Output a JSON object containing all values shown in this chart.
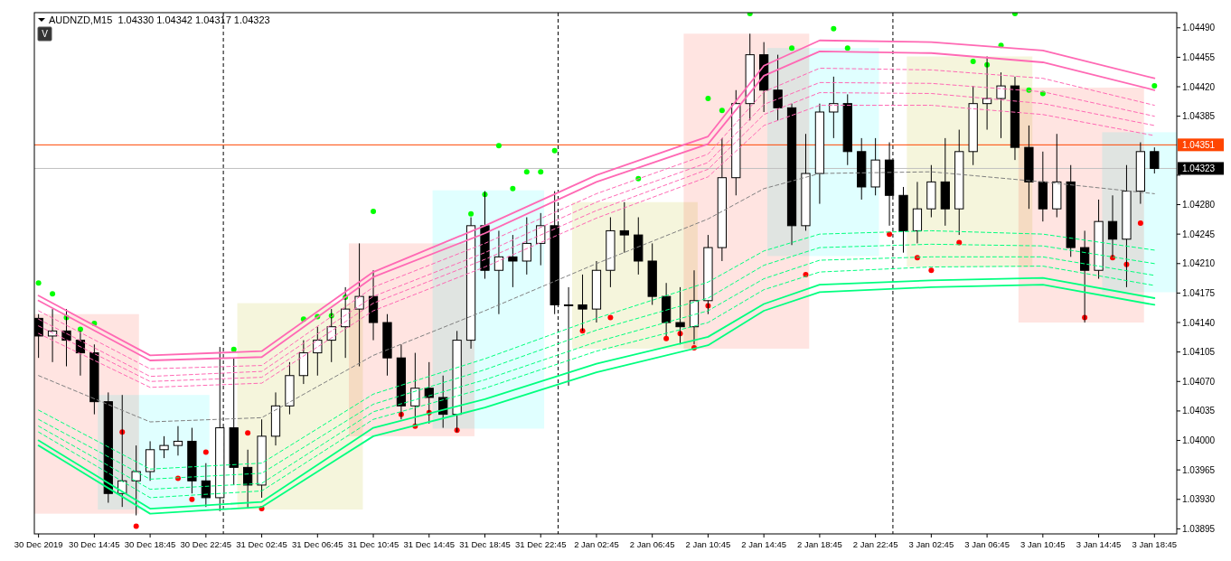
{
  "chart_data": {
    "type": "candlestick",
    "title": "AUDNZD,M15  1.04330 1.04342 1.04317 1.04323",
    "annotations": [
      "V"
    ],
    "ylim": [
      1.03889,
      1.04508
    ],
    "yticks": [
      {
        "value": 1.0449,
        "label": "1.04490"
      },
      {
        "value": 1.04455,
        "label": "1.04455"
      },
      {
        "value": 1.0442,
        "label": "1.04420"
      },
      {
        "value": 1.04385,
        "label": "1.04385"
      },
      {
        "value": 1.04315,
        "label": null
      },
      {
        "value": 1.0428,
        "label": "1.04280"
      },
      {
        "value": 1.04245,
        "label": "1.04245"
      },
      {
        "value": 1.0421,
        "label": "1.04210"
      },
      {
        "value": 1.04175,
        "label": "1.04175"
      },
      {
        "value": 1.0414,
        "label": "1.04140"
      },
      {
        "value": 1.04105,
        "label": "1.04105"
      },
      {
        "value": 1.0407,
        "label": "1.04070"
      },
      {
        "value": 1.04035,
        "label": "1.04035"
      },
      {
        "value": 1.04,
        "label": "1.04000"
      },
      {
        "value": 1.03965,
        "label": "1.03965"
      },
      {
        "value": 1.0393,
        "label": "1.03930"
      },
      {
        "value": 1.03895,
        "label": "1.03895"
      }
    ],
    "ref_lines": [
      {
        "axis": "y",
        "value": 1.04351,
        "label": "1.04351",
        "color": "#ff4500",
        "line_style": "solid"
      },
      {
        "axis": "y",
        "value": 1.04323,
        "label": "1.04323",
        "color": "#c0c0c0",
        "line_style": "solid"
      }
    ],
    "categories": [
      "30 Dec 2019",
      null,
      null,
      null,
      "30 Dec 14:45",
      null,
      null,
      null,
      "30 Dec 18:45",
      null,
      null,
      null,
      "30 Dec 22:45",
      null,
      null,
      null,
      "31 Dec 02:45",
      null,
      null,
      null,
      "31 Dec 06:45",
      null,
      null,
      null,
      "31 Dec 10:45",
      null,
      null,
      null,
      "31 Dec 14:45",
      null,
      null,
      null,
      "31 Dec 18:45",
      null,
      null,
      null,
      "31 Dec 22:45",
      null,
      null,
      null,
      "2 Jan 02:45",
      null,
      null,
      null,
      "2 Jan 06:45",
      null,
      null,
      null,
      "2 Jan 10:45",
      null,
      null,
      null,
      "2 Jan 14:45",
      null,
      null,
      null,
      "2 Jan 18:45",
      null,
      null,
      null,
      "2 Jan 22:45",
      null,
      null,
      null,
      "3 Jan 02:45",
      null,
      null,
      null,
      "3 Jan 06:45",
      null,
      null,
      null,
      "3 Jan 10:45",
      null,
      null,
      null,
      "3 Jan 14:45",
      null,
      null,
      null,
      "3 Jan 18:45"
    ],
    "ohlc": [
      [
        1.04145,
        1.0415,
        1.04098,
        1.04124
      ],
      [
        1.04124,
        1.04156,
        1.04093,
        1.0413
      ],
      [
        1.0413,
        1.04156,
        1.04088,
        1.04119
      ],
      [
        1.04119,
        1.0413,
        1.04077,
        1.04104
      ],
      [
        1.04104,
        1.04114,
        1.04031,
        1.04046
      ],
      [
        1.04046,
        1.04057,
        1.03926,
        1.03937
      ],
      [
        1.03937,
        1.04054,
        1.03921,
        1.03952
      ],
      [
        1.03952,
        1.03994,
        1.03911,
        1.03963
      ],
      [
        1.03963,
        1.03999,
        1.03952,
        1.03989
      ],
      [
        1.03989,
        1.04005,
        1.03979,
        1.03994
      ],
      [
        1.03994,
        1.04017,
        1.03982,
        1.03999
      ],
      [
        1.03999,
        1.04015,
        1.03937,
        1.03952
      ],
      [
        1.03952,
        1.03973,
        1.03921,
        1.03932
      ],
      [
        1.03932,
        1.04111,
        1.03916,
        1.04015
      ],
      [
        1.04015,
        1.04098,
        1.03947,
        1.03968
      ],
      [
        1.03968,
        1.03989,
        1.03919,
        1.03947
      ],
      [
        1.03947,
        1.04025,
        1.03932,
        1.04005
      ],
      [
        1.04005,
        1.04057,
        1.03994,
        1.04041
      ],
      [
        1.04041,
        1.04093,
        1.04031,
        1.04077
      ],
      [
        1.04077,
        1.04119,
        1.04067,
        1.04104
      ],
      [
        1.04104,
        1.04135,
        1.04077,
        1.04119
      ],
      [
        1.04119,
        1.04156,
        1.04093,
        1.04135
      ],
      [
        1.04135,
        1.04182,
        1.04098,
        1.04156
      ],
      [
        1.04156,
        1.04234,
        1.04088,
        1.04171
      ],
      [
        1.04171,
        1.04202,
        1.04119,
        1.0414
      ],
      [
        1.0414,
        1.0415,
        1.04077,
        1.04098
      ],
      [
        1.04098,
        1.04114,
        1.04025,
        1.04041
      ],
      [
        1.04041,
        1.04104,
        1.04017,
        1.04062
      ],
      [
        1.04062,
        1.04093,
        1.0402,
        1.04051
      ],
      [
        1.04051,
        1.04077,
        1.04015,
        1.04031
      ],
      [
        1.04031,
        1.0413,
        1.0401,
        1.04119
      ],
      [
        1.04119,
        1.04265,
        1.04109,
        1.04255
      ],
      [
        1.04255,
        1.04296,
        1.04192,
        1.04202
      ],
      [
        1.04202,
        1.04249,
        1.0415,
        1.04218
      ],
      [
        1.04218,
        1.04244,
        1.04182,
        1.04213
      ],
      [
        1.04213,
        1.04265,
        1.04197,
        1.04234
      ],
      [
        1.04234,
        1.0427,
        1.04208,
        1.04255
      ],
      [
        1.04255,
        1.04296,
        1.0415,
        1.04161
      ],
      [
        1.04161,
        1.04182,
        1.04065,
        1.04161
      ],
      [
        1.04161,
        1.04197,
        1.0413,
        1.04156
      ],
      [
        1.04156,
        1.04213,
        1.0414,
        1.04202
      ],
      [
        1.04202,
        1.04265,
        1.04182,
        1.04249
      ],
      [
        1.04249,
        1.04283,
        1.04223,
        1.04244
      ],
      [
        1.04244,
        1.04265,
        1.04197,
        1.04213
      ],
      [
        1.04213,
        1.04234,
        1.04161,
        1.04171
      ],
      [
        1.04171,
        1.04187,
        1.04124,
        1.0414
      ],
      [
        1.0414,
        1.04182,
        1.04114,
        1.04135
      ],
      [
        1.04135,
        1.04202,
        1.04114,
        1.04166
      ],
      [
        1.04166,
        1.04244,
        1.0415,
        1.04229
      ],
      [
        1.04229,
        1.04359,
        1.04213,
        1.04312
      ],
      [
        1.04312,
        1.04416,
        1.04291,
        1.044
      ],
      [
        1.044,
        1.04483,
        1.0438,
        1.04458
      ],
      [
        1.04458,
        1.04473,
        1.0439,
        1.04416
      ],
      [
        1.04416,
        1.04458,
        1.0438,
        1.04395
      ],
      [
        1.04395,
        1.044,
        1.04232,
        1.04255
      ],
      [
        1.04255,
        1.04364,
        1.04249,
        1.04317
      ],
      [
        1.04317,
        1.044,
        1.04281,
        1.0439
      ],
      [
        1.0439,
        1.04432,
        1.04359,
        1.044
      ],
      [
        1.044,
        1.04411,
        1.04327,
        1.04343
      ],
      [
        1.04343,
        1.04359,
        1.04286,
        1.04301
      ],
      [
        1.04301,
        1.04359,
        1.04291,
        1.04333
      ],
      [
        1.04333,
        1.04354,
        1.04255,
        1.04291
      ],
      [
        1.04291,
        1.04301,
        1.04223,
        1.04249
      ],
      [
        1.04249,
        1.04307,
        1.04234,
        1.04275
      ],
      [
        1.04275,
        1.04327,
        1.04265,
        1.04307
      ],
      [
        1.04307,
        1.04359,
        1.04255,
        1.04275
      ],
      [
        1.04275,
        1.04369,
        1.04244,
        1.04343
      ],
      [
        1.04343,
        1.04421,
        1.04327,
        1.044
      ],
      [
        1.044,
        1.04456,
        1.04369,
        1.04406
      ],
      [
        1.04406,
        1.04437,
        1.04359,
        1.04421
      ],
      [
        1.04421,
        1.04432,
        1.04333,
        1.04348
      ],
      [
        1.04348,
        1.04374,
        1.04275,
        1.04307
      ],
      [
        1.04307,
        1.04343,
        1.0426,
        1.04275
      ],
      [
        1.04275,
        1.04364,
        1.04265,
        1.04307
      ],
      [
        1.04307,
        1.04327,
        1.04218,
        1.04229
      ],
      [
        1.04229,
        1.04249,
        1.0414,
        1.04202
      ],
      [
        1.04202,
        1.04286,
        1.04192,
        1.0426
      ],
      [
        1.0426,
        1.04291,
        1.04218,
        1.04239
      ],
      [
        1.04239,
        1.04327,
        1.04182,
        1.04296
      ],
      [
        1.04296,
        1.04354,
        1.04281,
        1.04343
      ],
      [
        1.04343,
        1.04348,
        1.04317,
        1.04323
      ]
    ],
    "series": [
      {
        "type": "line",
        "color": "#ff69b4",
        "line_style": "solid",
        "x": [
          "30 Dec 2019",
          "30 Dec 18:45",
          "31 Dec 02:45",
          "31 Dec 10:45",
          "31 Dec 18:45",
          "2 Jan 02:45",
          "2 Jan 10:45",
          "2 Jan 14:45",
          "2 Jan 18:45",
          "3 Jan 02:45",
          "3 Jan 10:45",
          "3 Jan 18:45"
        ],
        "values": [
          1.04172,
          1.04101,
          1.04106,
          1.042,
          1.04255,
          1.04315,
          1.04361,
          1.04445,
          1.04475,
          1.04473,
          1.04463,
          1.0443
        ]
      },
      {
        "type": "line",
        "color": "#ff69b4",
        "line_style": "solid",
        "x": [
          "30 Dec 2019",
          "30 Dec 18:45",
          "31 Dec 02:45",
          "31 Dec 10:45",
          "31 Dec 18:45",
          "2 Jan 02:45",
          "2 Jan 10:45",
          "2 Jan 14:45",
          "2 Jan 18:45",
          "3 Jan 02:45",
          "3 Jan 10:45",
          "3 Jan 18:45"
        ],
        "values": [
          1.04166,
          1.04095,
          1.04099,
          1.04194,
          1.04246,
          1.04307,
          1.04352,
          1.04433,
          1.04462,
          1.0446,
          1.04449,
          1.04416
        ]
      },
      {
        "type": "line",
        "color": "#ff69b4",
        "line_style": "dashed",
        "x": [
          "30 Dec 2019",
          "30 Dec 18:45",
          "31 Dec 02:45",
          "31 Dec 10:45",
          "31 Dec 18:45",
          "2 Jan 02:45",
          "2 Jan 10:45",
          "2 Jan 14:45",
          "2 Jan 18:45",
          "3 Jan 02:45",
          "3 Jan 10:45",
          "3 Jan 18:45"
        ],
        "values": [
          1.04154,
          1.04085,
          1.04089,
          1.04182,
          1.04234,
          1.04293,
          1.0434,
          1.04414,
          1.04442,
          1.0444,
          1.0443,
          1.04398
        ]
      },
      {
        "type": "line",
        "color": "#ff69b4",
        "line_style": "dashed",
        "x": [
          "30 Dec 2019",
          "30 Dec 18:45",
          "31 Dec 02:45",
          "31 Dec 10:45",
          "31 Dec 18:45",
          "2 Jan 02:45",
          "2 Jan 10:45",
          "2 Jan 14:45",
          "2 Jan 18:45",
          "3 Jan 02:45",
          "3 Jan 10:45",
          "3 Jan 18:45"
        ],
        "values": [
          1.04144,
          1.04076,
          1.04082,
          1.04171,
          1.04223,
          1.04283,
          1.0433,
          1.04399,
          1.04425,
          1.04424,
          1.04414,
          1.04385
        ]
      },
      {
        "type": "line",
        "color": "#ff69b4",
        "line_style": "dashed",
        "x": [
          "30 Dec 2019",
          "30 Dec 18:45",
          "31 Dec 02:45",
          "31 Dec 10:45",
          "31 Dec 18:45",
          "2 Jan 02:45",
          "2 Jan 10:45",
          "2 Jan 14:45",
          "2 Jan 18:45",
          "3 Jan 02:45",
          "3 Jan 10:45",
          "3 Jan 18:45"
        ],
        "values": [
          1.04136,
          1.0407,
          1.04075,
          1.04163,
          1.04215,
          1.04273,
          1.04322,
          1.04387,
          1.04413,
          1.04412,
          1.044,
          1.04374
        ]
      },
      {
        "type": "line",
        "color": "#ff69b4",
        "line_style": "dashed",
        "x": [
          "30 Dec 2019",
          "30 Dec 18:45",
          "31 Dec 02:45",
          "31 Dec 10:45",
          "31 Dec 18:45",
          "2 Jan 02:45",
          "2 Jan 10:45",
          "2 Jan 14:45",
          "2 Jan 18:45",
          "3 Jan 02:45",
          "3 Jan 10:45",
          "3 Jan 18:45"
        ],
        "values": [
          1.04127,
          1.04063,
          1.04068,
          1.04154,
          1.04206,
          1.04264,
          1.04313,
          1.04374,
          1.04398,
          1.04398,
          1.04387,
          1.04362
        ]
      },
      {
        "type": "line",
        "color": "#808080",
        "line_style": "dashed",
        "x": [
          "30 Dec 2019",
          "30 Dec 18:45",
          "31 Dec 02:45",
          "31 Dec 10:45",
          "31 Dec 18:45",
          "2 Jan 02:45",
          "2 Jan 10:45",
          "2 Jan 14:45",
          "2 Jan 18:45",
          "3 Jan 02:45",
          "3 Jan 10:45",
          "3 Jan 18:45"
        ],
        "values": [
          1.04077,
          1.04022,
          1.04027,
          1.04101,
          1.04154,
          1.0421,
          1.04263,
          1.04299,
          1.04317,
          1.04319,
          1.04307,
          1.04293
        ]
      },
      {
        "type": "line",
        "color": "#00ff7f",
        "line_style": "dashed",
        "x": [
          "30 Dec 2019",
          "30 Dec 18:45",
          "31 Dec 02:45",
          "31 Dec 10:45",
          "31 Dec 18:45",
          "2 Jan 02:45",
          "2 Jan 10:45",
          "2 Jan 14:45",
          "2 Jan 18:45",
          "3 Jan 02:45",
          "3 Jan 10:45",
          "3 Jan 18:45"
        ],
        "values": [
          1.04036,
          1.03966,
          1.03973,
          1.04055,
          1.04097,
          1.04145,
          1.04188,
          1.04225,
          1.04245,
          1.04249,
          1.04245,
          1.04226
        ]
      },
      {
        "type": "line",
        "color": "#00ff7f",
        "line_style": "dashed",
        "x": [
          "30 Dec 2019",
          "30 Dec 18:45",
          "31 Dec 02:45",
          "31 Dec 10:45",
          "31 Dec 18:45",
          "2 Jan 02:45",
          "2 Jan 10:45",
          "2 Jan 14:45",
          "2 Jan 18:45",
          "3 Jan 02:45",
          "3 Jan 10:45",
          "3 Jan 18:45"
        ],
        "values": [
          1.04025,
          1.03954,
          1.03961,
          1.04043,
          1.04084,
          1.04131,
          1.04169,
          1.04208,
          1.04229,
          1.04233,
          1.04231,
          1.0421
        ]
      },
      {
        "type": "line",
        "color": "#00ff7f",
        "line_style": "dashed",
        "x": [
          "30 Dec 2019",
          "30 Dec 18:45",
          "31 Dec 02:45",
          "31 Dec 10:45",
          "31 Dec 18:45",
          "2 Jan 02:45",
          "2 Jan 10:45",
          "2 Jan 14:45",
          "2 Jan 18:45",
          "3 Jan 02:45",
          "3 Jan 10:45",
          "3 Jan 18:45"
        ],
        "values": [
          1.04017,
          1.03942,
          1.03949,
          1.04034,
          1.04072,
          1.04117,
          1.04154,
          1.04192,
          1.04214,
          1.04218,
          1.04218,
          1.04196
        ]
      },
      {
        "type": "line",
        "color": "#00ff7f",
        "line_style": "dashed",
        "x": [
          "30 Dec 2019",
          "30 Dec 18:45",
          "31 Dec 02:45",
          "31 Dec 10:45",
          "31 Dec 18:45",
          "2 Jan 02:45",
          "2 Jan 10:45",
          "2 Jan 14:45",
          "2 Jan 18:45",
          "3 Jan 02:45",
          "3 Jan 10:45",
          "3 Jan 18:45"
        ],
        "values": [
          1.0401,
          1.03932,
          1.0394,
          1.04025,
          1.04062,
          1.04106,
          1.0414,
          1.04179,
          1.042,
          1.04206,
          1.04207,
          1.04184
        ]
      },
      {
        "type": "line",
        "color": "#00ff7f",
        "line_style": "solid",
        "x": [
          "30 Dec 2019",
          "30 Dec 18:45",
          "31 Dec 02:45",
          "31 Dec 10:45",
          "31 Dec 18:45",
          "2 Jan 02:45",
          "2 Jan 10:45",
          "2 Jan 14:45",
          "2 Jan 18:45",
          "3 Jan 02:45",
          "3 Jan 10:45",
          "3 Jan 18:45"
        ],
        "values": [
          1.04,
          1.03919,
          1.03927,
          1.04015,
          1.04049,
          1.04091,
          1.04123,
          1.04162,
          1.04185,
          1.0419,
          1.04193,
          1.04169
        ]
      },
      {
        "type": "line",
        "color": "#00ff7f",
        "line_style": "solid",
        "x": [
          "30 Dec 2019",
          "30 Dec 18:45",
          "31 Dec 02:45",
          "31 Dec 10:45",
          "31 Dec 18:45",
          "2 Jan 02:45",
          "2 Jan 10:45",
          "2 Jan 14:45",
          "2 Jan 18:45",
          "3 Jan 02:45",
          "3 Jan 10:45",
          "3 Jan 18:45"
        ],
        "values": [
          1.03994,
          1.03913,
          1.03921,
          1.04005,
          1.04039,
          1.04081,
          1.04113,
          1.04154,
          1.04176,
          1.04182,
          1.04185,
          1.04161
        ]
      },
      {
        "type": "scatter",
        "marker": "circle",
        "color": "#00ff00",
        "values": [
          1.04187,
          1.04174,
          1.04146,
          1.04132,
          1.04139,
          null,
          null,
          null,
          null,
          null,
          null,
          null,
          null,
          null,
          1.04108,
          null,
          null,
          null,
          null,
          1.04144,
          1.04147,
          1.04148,
          1.0417,
          null,
          1.04272,
          null,
          null,
          null,
          null,
          null,
          null,
          1.04269,
          1.04292,
          1.0435,
          1.04299,
          1.04319,
          1.04319,
          1.04344,
          null,
          null,
          null,
          null,
          null,
          1.04311,
          null,
          null,
          null,
          null,
          1.04406,
          1.04392,
          null,
          1.04507,
          null,
          null,
          1.04466,
          null,
          null,
          1.04489,
          1.04466,
          null,
          null,
          null,
          null,
          null,
          null,
          null,
          null,
          1.0445,
          1.04446,
          1.04469,
          1.04507,
          1.04416,
          1.04412,
          null,
          null,
          null,
          null,
          null,
          null,
          null,
          1.04421
        ]
      },
      {
        "type": "scatter",
        "marker": "circle",
        "color": "#ff0000",
        "values": [
          null,
          null,
          null,
          null,
          null,
          null,
          1.0401,
          1.03898,
          null,
          null,
          1.03955,
          1.0393,
          1.03986,
          null,
          null,
          1.04009,
          1.03919,
          null,
          null,
          null,
          null,
          null,
          null,
          null,
          null,
          null,
          1.04031,
          1.04017,
          1.04033,
          null,
          1.04012,
          null,
          null,
          null,
          null,
          null,
          null,
          null,
          null,
          1.0413,
          null,
          1.04146,
          null,
          null,
          null,
          1.04121,
          1.04127,
          1.0411,
          1.0416,
          null,
          null,
          null,
          null,
          null,
          null,
          1.04197,
          null,
          null,
          null,
          null,
          null,
          1.04245,
          null,
          1.04217,
          1.04202,
          null,
          1.04235,
          null,
          null,
          null,
          null,
          null,
          null,
          null,
          null,
          1.04146,
          null,
          1.04217,
          1.04209,
          1.04258,
          null
        ]
      }
    ]
  }
}
